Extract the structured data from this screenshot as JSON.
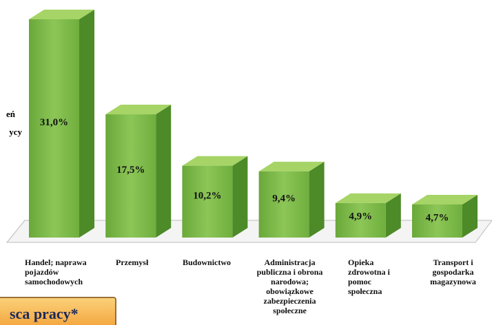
{
  "chart_data": {
    "type": "bar3d",
    "categories": [
      "Handel; naprawa pojazdów samochodowych",
      "Przemysł",
      "Budownictwo",
      "Administracja publiczna i obrona narodowa; obowiązkowe zabezpieczenia społeczne",
      "Opieka zdrowotna i pomoc społeczna",
      "Transport i gospodarka magazynowa"
    ],
    "values": [
      31.0,
      17.5,
      10.2,
      9.4,
      4.9,
      4.7
    ],
    "value_labels": [
      "31,0%",
      "17,5%",
      "10,2%",
      "9,4%",
      "4,9%",
      "4,7%"
    ],
    "color": "#7cb84a",
    "annotations": [
      "eń",
      "ycy",
      "sca pracy*"
    ]
  }
}
